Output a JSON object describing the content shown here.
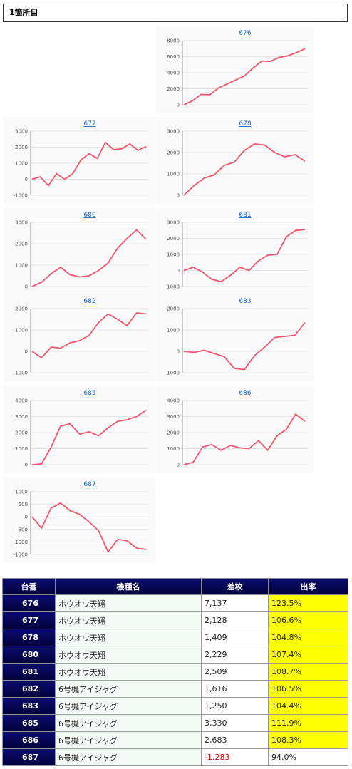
{
  "header": {
    "title": "1箇所目"
  },
  "chart_data": [
    {
      "type": "line",
      "title": "676",
      "ylim": [
        0,
        8000
      ],
      "yticks": [
        0,
        2000,
        4000,
        6000,
        8000
      ],
      "series": [
        {
          "values": [
            0,
            500,
            1300,
            1250,
            2100,
            2600,
            3100,
            3600,
            4600,
            5450,
            5400,
            5900,
            6100,
            6500,
            7000
          ]
        }
      ]
    },
    {
      "type": "line",
      "title": "677",
      "ylim": [
        -1000,
        3000
      ],
      "yticks": [
        -1000,
        0,
        1000,
        2000,
        3000
      ],
      "series": [
        {
          "values": [
            0,
            150,
            -400,
            350,
            0,
            350,
            1200,
            1600,
            1300,
            2300,
            1850,
            1900,
            2200,
            1800,
            2050
          ]
        }
      ]
    },
    {
      "type": "line",
      "title": "678",
      "ylim": [
        0,
        3000
      ],
      "yticks": [
        0,
        1000,
        2000,
        3000
      ],
      "series": [
        {
          "values": [
            0,
            450,
            800,
            950,
            1400,
            1550,
            2100,
            2400,
            2350,
            2000,
            1800,
            1900,
            1600
          ]
        }
      ]
    },
    {
      "type": "line",
      "title": "680",
      "ylim": [
        0,
        3000
      ],
      "yticks": [
        0,
        1000,
        2000,
        3000
      ],
      "series": [
        {
          "values": [
            0,
            200,
            600,
            900,
            550,
            450,
            500,
            750,
            1100,
            1800,
            2250,
            2650,
            2200
          ]
        }
      ]
    },
    {
      "type": "line",
      "title": "681",
      "ylim": [
        -1000,
        3000
      ],
      "yticks": [
        -1000,
        0,
        1000,
        2000,
        3000
      ],
      "series": [
        {
          "values": [
            0,
            200,
            -100,
            -550,
            -700,
            -300,
            200,
            0,
            600,
            950,
            1000,
            2100,
            2500,
            2550
          ]
        }
      ]
    },
    {
      "type": "line",
      "title": "682",
      "ylim": [
        -1000,
        2000
      ],
      "yticks": [
        -1000,
        0,
        1000,
        2000
      ],
      "series": [
        {
          "values": [
            0,
            -300,
            200,
            150,
            400,
            500,
            750,
            1350,
            1750,
            1500,
            1200,
            1800,
            1750
          ]
        }
      ]
    },
    {
      "type": "line",
      "title": "683",
      "ylim": [
        -1000,
        2000
      ],
      "yticks": [
        -1000,
        0,
        1000,
        2000
      ],
      "series": [
        {
          "values": [
            0,
            -50,
            50,
            -100,
            -250,
            -800,
            -850,
            -200,
            200,
            650,
            700,
            750,
            1350
          ]
        }
      ]
    },
    {
      "type": "line",
      "title": "685",
      "ylim": [
        0,
        4000
      ],
      "yticks": [
        0,
        1000,
        2000,
        3000,
        4000
      ],
      "series": [
        {
          "values": [
            0,
            50,
            1100,
            2400,
            2550,
            1900,
            2050,
            1800,
            2300,
            2700,
            2800,
            3000,
            3400
          ]
        }
      ]
    },
    {
      "type": "line",
      "title": "686",
      "ylim": [
        0,
        4000
      ],
      "yticks": [
        0,
        1000,
        2000,
        3000,
        4000
      ],
      "series": [
        {
          "values": [
            0,
            150,
            1100,
            1250,
            900,
            1200,
            1050,
            1000,
            1500,
            900,
            1800,
            2200,
            3150,
            2700
          ]
        }
      ]
    },
    {
      "type": "line",
      "title": "687",
      "ylim": [
        -1500,
        1000
      ],
      "yticks": [
        -1500,
        -1000,
        -500,
        0,
        500,
        1000
      ],
      "series": [
        {
          "values": [
            0,
            -450,
            350,
            550,
            250,
            100,
            -200,
            -550,
            -1400,
            -900,
            -950,
            -1250,
            -1300
          ]
        }
      ]
    }
  ],
  "table": {
    "headers": [
      "台番",
      "機種名",
      "差枚",
      "出率"
    ],
    "rows": [
      {
        "num": "676",
        "name": "ホウオウ天翔",
        "diff": "7,137",
        "rate": "123.5%",
        "highlight": true
      },
      {
        "num": "677",
        "name": "ホウオウ天翔",
        "diff": "2,128",
        "rate": "106.6%",
        "highlight": true
      },
      {
        "num": "678",
        "name": "ホウオウ天翔",
        "diff": "1,409",
        "rate": "104.8%",
        "highlight": true
      },
      {
        "num": "680",
        "name": "ホウオウ天翔",
        "diff": "2,229",
        "rate": "107.4%",
        "highlight": true
      },
      {
        "num": "681",
        "name": "ホウオウ天翔",
        "diff": "2,509",
        "rate": "108.7%",
        "highlight": true
      },
      {
        "num": "682",
        "name": "6号機アイジャグ",
        "diff": "1,616",
        "rate": "106.5%",
        "highlight": true
      },
      {
        "num": "683",
        "name": "6号機アイジャグ",
        "diff": "1,250",
        "rate": "104.4%",
        "highlight": true
      },
      {
        "num": "685",
        "name": "6号機アイジャグ",
        "diff": "3,330",
        "rate": "111.9%",
        "highlight": true
      },
      {
        "num": "686",
        "name": "6号機アイジャグ",
        "diff": "2,683",
        "rate": "108.3%",
        "highlight": true
      },
      {
        "num": "687",
        "name": "6号機アイジャグ",
        "diff": "-1,283",
        "rate": "94.0%",
        "highlight": false
      }
    ]
  },
  "colors": {
    "line": "#f2566f",
    "highlight": "#ffff00",
    "header_bg": "#00004d"
  }
}
